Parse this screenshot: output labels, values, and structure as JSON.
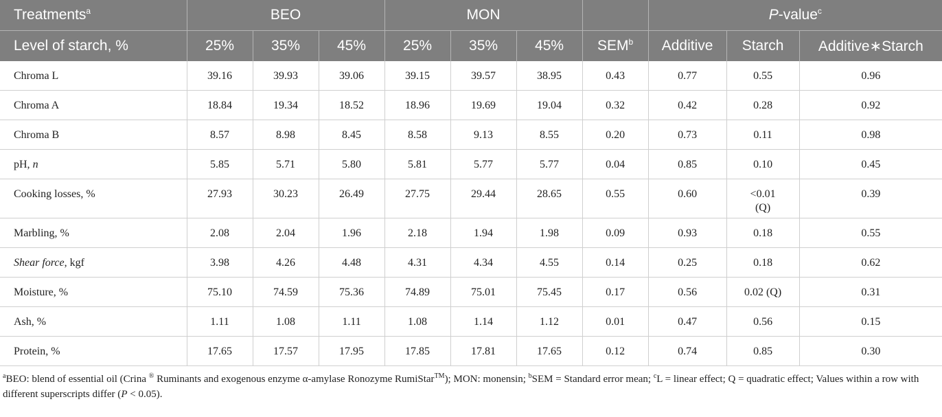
{
  "header": {
    "treatments_label": "Treatments",
    "treatments_sup": "a",
    "beo": "BEO",
    "mon": "MON",
    "pvalue_prefix": "P",
    "pvalue_suffix": "-value",
    "pvalue_sup": "c",
    "level_label": "Level of starch, %",
    "levels": [
      "25%",
      "35%",
      "45%",
      "25%",
      "35%",
      "45%"
    ],
    "sem": "SEM",
    "sem_sup": "b",
    "additive": "Additive",
    "starch": "Starch",
    "interaction": "Additive∗Starch"
  },
  "rows": [
    {
      "label": "Chroma L",
      "values": [
        "39.16",
        "39.93",
        "39.06",
        "39.15",
        "39.57",
        "38.95",
        "0.43",
        "0.77",
        "0.55",
        "0.96"
      ]
    },
    {
      "label": "Chroma A",
      "values": [
        "18.84",
        "19.34",
        "18.52",
        "18.96",
        "19.69",
        "19.04",
        "0.32",
        "0.42",
        "0.28",
        "0.92"
      ]
    },
    {
      "label": "Chroma B",
      "values": [
        "8.57",
        "8.98",
        "8.45",
        "8.58",
        "9.13",
        "8.55",
        "0.20",
        "0.73",
        "0.11",
        "0.98"
      ]
    },
    {
      "label_main": "pH, ",
      "label_ital": "n",
      "values": [
        "5.85",
        "5.71",
        "5.80",
        "5.81",
        "5.77",
        "5.77",
        "0.04",
        "0.85",
        "0.10",
        "0.45"
      ]
    },
    {
      "label": "Cooking losses, %",
      "values": [
        "27.93",
        "30.23",
        "26.49",
        "27.75",
        "29.44",
        "28.65",
        "0.55",
        "0.60",
        "<0.01",
        "0.39"
      ],
      "starch_note": "(Q)"
    },
    {
      "label": "Marbling, %",
      "values": [
        "2.08",
        "2.04",
        "1.96",
        "2.18",
        "1.94",
        "1.98",
        "0.09",
        "0.93",
        "0.18",
        "0.55"
      ]
    },
    {
      "label_ital_first": "Shear force",
      "label_rest": ", kgf",
      "values": [
        "3.98",
        "4.26",
        "4.48",
        "4.31",
        "4.34",
        "4.55",
        "0.14",
        "0.25",
        "0.18",
        "0.62"
      ]
    },
    {
      "label": "Moisture, %",
      "values": [
        "75.10",
        "74.59",
        "75.36",
        "74.89",
        "75.01",
        "75.45",
        "0.17",
        "0.56",
        "0.02 (Q)",
        "0.31"
      ]
    },
    {
      "label": "Ash, %",
      "values": [
        "1.11",
        "1.08",
        "1.11",
        "1.08",
        "1.14",
        "1.12",
        "0.01",
        "0.47",
        "0.56",
        "0.15"
      ]
    },
    {
      "label": "Protein, %",
      "values": [
        "17.65",
        "17.57",
        "17.95",
        "17.85",
        "17.81",
        "17.65",
        "0.12",
        "0.74",
        "0.85",
        "0.30"
      ]
    }
  ],
  "footnote": {
    "a_mark": "a",
    "a_text_1": "BEO: blend of essential oil (Crina ",
    "registered": "®",
    "a_text_2": " Ruminants and exogenous enzyme α-amylase Ronozyme RumiStar",
    "tm": "TM",
    "a_text_3": "); MON: monensin; ",
    "b_mark": "b",
    "b_text": "SEM = Standard error mean; ",
    "c_mark": "c",
    "c_text": "L = linear effect; Q = quadratic effect; Values within a row with different superscripts differ (",
    "p_ital": "P",
    "p_rest": " < 0.05)."
  }
}
